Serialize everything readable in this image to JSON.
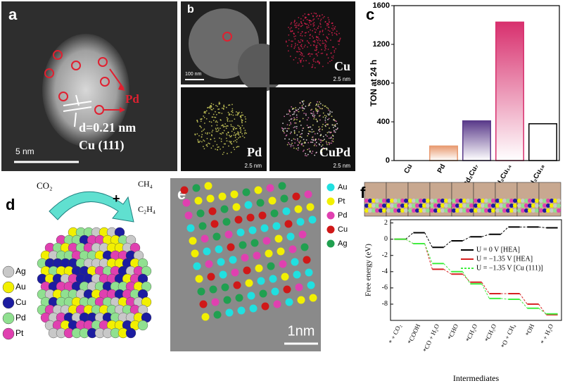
{
  "panel_a": {
    "label": "a",
    "annotation": "Pd",
    "d_spacing": "d=0.21 nm",
    "plane": "Cu (111)",
    "scale_bar": "5 nm"
  },
  "panel_b": {
    "label": "b",
    "scale_bar": "100 nm",
    "maps": [
      {
        "element": "Cu",
        "scale_bar": "2.5 nm"
      },
      {
        "element": "Pd",
        "scale_bar": "2.5 nm"
      },
      {
        "element": "CuPd",
        "scale_bar": "2.5 nm"
      }
    ]
  },
  "chart_data": [
    {
      "type": "bar",
      "panel_label": "c",
      "y_label": "TON at 24 h",
      "categories": [
        "Cu",
        "Pd",
        "Pd₂Cu₇",
        "Pd₂Cu₁₄",
        "Pd₂Cu₁₈"
      ],
      "values": [
        0,
        150,
        410,
        1430,
        380
      ],
      "colors": [
        "#ffffff",
        "#e89a70",
        "#5a3a8a",
        "#d8306e",
        "#ffffff"
      ],
      "ylim": [
        0,
        1600
      ],
      "yticks": [
        0,
        400,
        800,
        1200,
        1600
      ]
    },
    {
      "type": "step",
      "panel_label": "f",
      "y_label": "Free energy (eV)",
      "x_label": "Intermediates",
      "categories": [
        "* + CO₂",
        "*COOH",
        "*CO + H₂O",
        "*CHO",
        "*CH₂O",
        "*CH₃O",
        "*O + CH₄",
        "*OH",
        "* + H₂O"
      ],
      "series": [
        {
          "name": "U = 0 V [HEA]",
          "color": "#000000",
          "values": [
            0,
            0.8,
            -1.0,
            -0.2,
            0.3,
            0.6,
            1.5,
            1.5,
            1.4
          ]
        },
        {
          "name": "U = −1.35 V [HEA]",
          "color": "#d62020",
          "values": [
            0,
            -0.55,
            -3.7,
            -4.3,
            -5.3,
            -6.7,
            -6.7,
            -8.0,
            -9.3
          ]
        },
        {
          "name": "U = −1.35 V [Cu (111)]",
          "color": "#40ee40",
          "values": [
            0,
            -0.55,
            -3.0,
            -4.0,
            -5.5,
            -7.3,
            -7.4,
            -8.5,
            -9.2
          ]
        }
      ],
      "ylim": [
        -10,
        2.4
      ],
      "yticks": [
        -8,
        -6,
        -4,
        -2,
        0,
        2
      ],
      "legend": "upper right"
    }
  ],
  "panel_d": {
    "label": "d",
    "reactant": "CO₂",
    "products": [
      "CH₄",
      "+",
      "C₂H₄"
    ],
    "legend": [
      {
        "name": "Ag",
        "color": "#c8c8c8"
      },
      {
        "name": "Au",
        "color": "#f2f000"
      },
      {
        "name": "Cu",
        "color": "#1c1ca0"
      },
      {
        "name": "Pd",
        "color": "#90e090"
      },
      {
        "name": "Pt",
        "color": "#e040b0"
      }
    ]
  },
  "panel_e": {
    "label": "e",
    "scale_bar": "1nm",
    "legend": [
      {
        "name": "Au",
        "color": "#20e0e0"
      },
      {
        "name": "Pt",
        "color": "#f2f000"
      },
      {
        "name": "Pd",
        "color": "#e040b0"
      },
      {
        "name": "Cu",
        "color": "#d01818"
      },
      {
        "name": "Ag",
        "color": "#20a050"
      }
    ]
  }
}
